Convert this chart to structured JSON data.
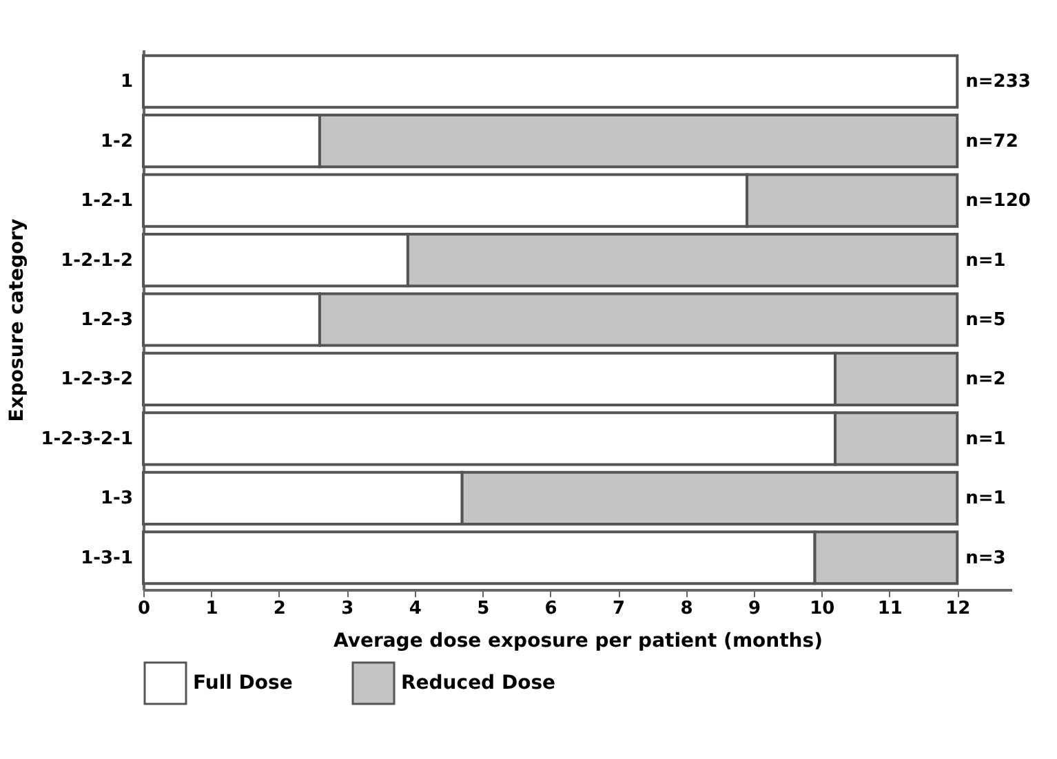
{
  "chart_data": {
    "type": "bar",
    "orientation": "horizontal",
    "stacked": true,
    "xlabel": "Average dose exposure per patient (months)",
    "ylabel": "Exposure category",
    "categories": [
      "1",
      "1-2",
      "1-2-1",
      "1-2-1-2",
      "1-2-3",
      "1-2-3-2",
      "1-2-3-2-1",
      "1-3",
      "1-3-1"
    ],
    "series": [
      {
        "name": "Full Dose",
        "color": "#ffffff",
        "values": [
          12,
          2.6,
          8.9,
          3.9,
          2.6,
          10.2,
          10.2,
          4.7,
          9.9
        ]
      },
      {
        "name": "Reduced Dose",
        "color": "#c4c4c4",
        "values": [
          null,
          9.4,
          3.1,
          8.1,
          9.4,
          1.8,
          1.8,
          7.3,
          2.1
        ]
      }
    ],
    "xlim": [
      0,
      12.8
    ],
    "xticks": [
      0,
      1,
      2,
      3,
      4,
      5,
      6,
      7,
      8,
      9,
      10,
      11,
      12
    ],
    "grid": false,
    "legend": "bottom",
    "annotations": [
      "n=233",
      "n=72",
      "n=120",
      "n=1",
      "n=5",
      "n=2",
      "n=1",
      "n=1",
      "n=3"
    ]
  }
}
